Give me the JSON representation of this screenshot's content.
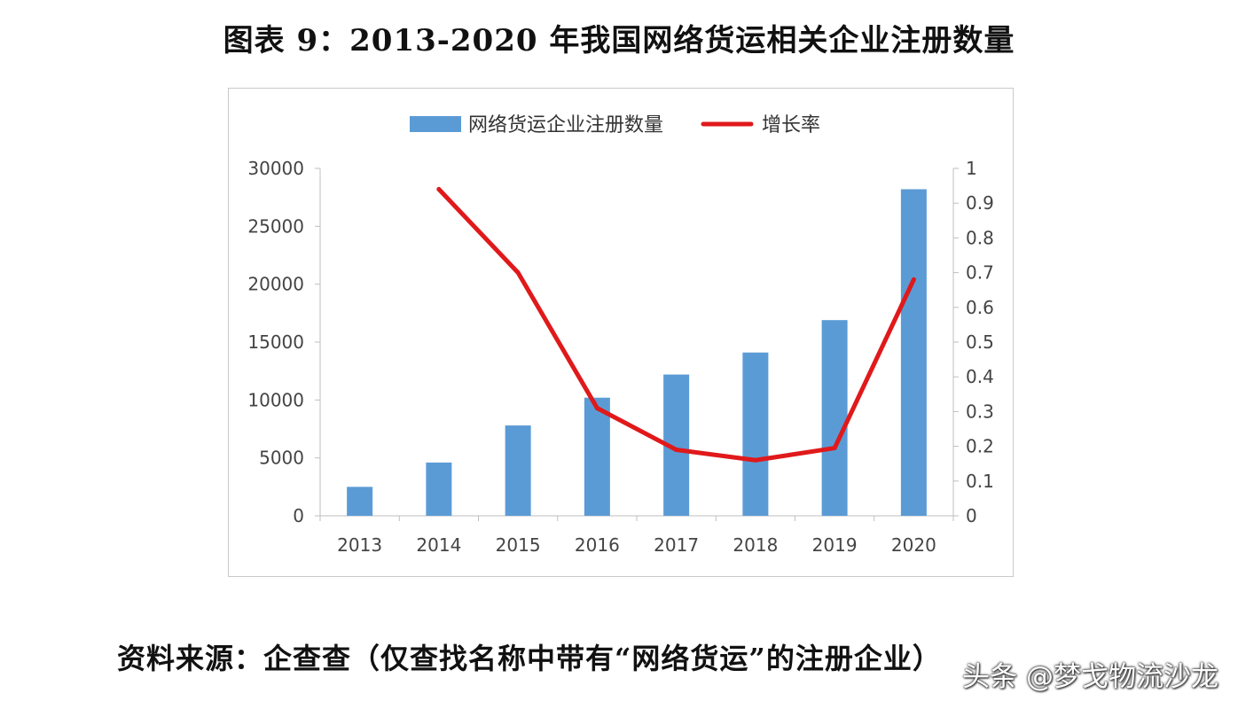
{
  "title": "图表 9：2013-2020 年我国网络货运相关企业注册数量",
  "source_note": "资料来源：企查查（仅查找名称中带有“网络货运”的注册企业）",
  "watermark": "头条 @梦戈物流沙龙",
  "colors": {
    "bar": "#5b9bd5",
    "line": "#e0191b",
    "axis": "#bfbfbf",
    "frame": "#c9c9c9"
  },
  "chart_data": {
    "type": "bar",
    "title": "",
    "categories": [
      "2013",
      "2014",
      "2015",
      "2016",
      "2017",
      "2018",
      "2019",
      "2020"
    ],
    "series": [
      {
        "name": "网络货运企业注册数量",
        "type": "bar",
        "axis": "left",
        "values": [
          2500,
          4600,
          7800,
          10200,
          12200,
          14100,
          16900,
          28200
        ]
      },
      {
        "name": "增长率",
        "type": "line",
        "axis": "right",
        "values": [
          null,
          0.94,
          0.7,
          0.31,
          0.19,
          0.16,
          0.195,
          0.68
        ]
      }
    ],
    "y_left": {
      "range": [
        0,
        30000
      ],
      "ticks": [
        0,
        5000,
        10000,
        15000,
        20000,
        25000,
        30000
      ],
      "tick_labels": [
        "0",
        "5000",
        "10000",
        "15000",
        "20000",
        "25000",
        "30000"
      ]
    },
    "y_right": {
      "range": [
        0,
        1
      ],
      "ticks": [
        0,
        0.1,
        0.2,
        0.3,
        0.4,
        0.5,
        0.6,
        0.7,
        0.8,
        0.9,
        1
      ],
      "tick_labels": [
        "0",
        "0.1",
        "0.2",
        "0.3",
        "0.4",
        "0.5",
        "0.6",
        "0.7",
        "0.8",
        "0.9",
        "1"
      ]
    },
    "xlabel": "",
    "ylabel": "",
    "grid": false,
    "legend_position": "top-center"
  }
}
